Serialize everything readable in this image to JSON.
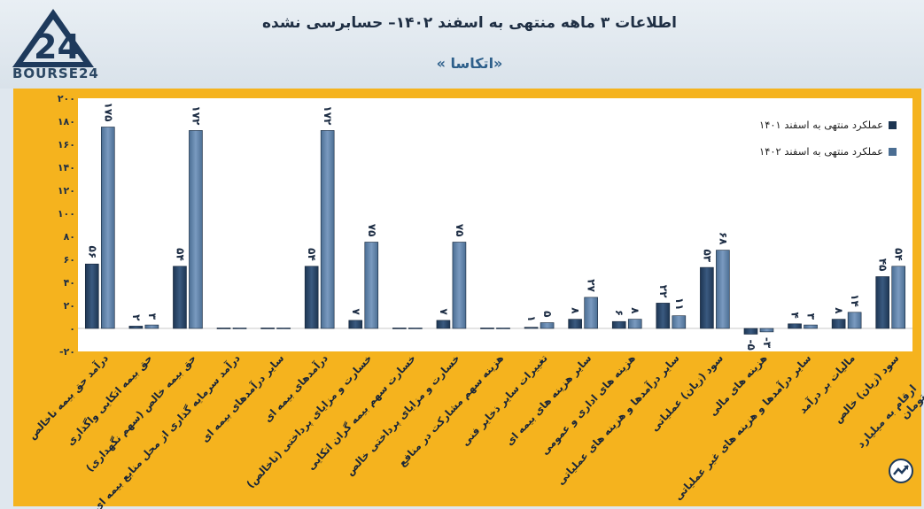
{
  "header": {
    "title": "اطلاعات ۳ ماهه منتهی به اسفند ۱۴۰۲– حسابرسی نشده",
    "subtitle": "«اتکاسا »",
    "logo_text": "BOURSE24"
  },
  "footer": {
    "note": "ارقام به میلیارد تومان"
  },
  "colors": {
    "panel": "#f5b31e",
    "series_1401": "#1d3552",
    "series_1402": "#4b6e93"
  },
  "chart_data": {
    "type": "bar",
    "ylim": [
      -20,
      200
    ],
    "yticks": [
      "-۲۰",
      "۰",
      "۲۰",
      "۴۰",
      "۶۰",
      "۸۰",
      "۱۰۰",
      "۱۲۰",
      "۱۴۰",
      "۱۶۰",
      "۱۸۰",
      "۲۰۰"
    ],
    "ytick_values": [
      -20,
      0,
      20,
      40,
      60,
      80,
      100,
      120,
      140,
      160,
      180,
      200
    ],
    "legend": [
      "عملکرد منتهی به اسفند ۱۴۰۱",
      "عملکرد منتهی به اسفند ۱۴۰۲"
    ],
    "categories": [
      "درآمد حق بیمه ناخالص",
      "حق بیمه اتکایی واگذاری",
      "حق بیمه خالص (سهم نگهداری)",
      "درآمد سرمایه گذاری از محل منابع بیمه ای",
      "سایر درآمدهای بیمه ای",
      "درآمدهای بیمه ای",
      "خسارت و مزایای پرداختی (ناخالص)",
      "خسارت سهم بیمه گران اتکایی",
      "خسارت و مزایای پرداختی خالص",
      "هزینه سهم مشارکت در منافع",
      "تغییرات سایر ذخایر فنی",
      "سایر هزینه های بیمه ای",
      "هزینه های اداری و عمومی",
      "سایر درآمدها و هزینه های عملیاتی",
      "سود (زیان) عملیاتی",
      "هزینه های مالی",
      "سایر درآمدها و هزینه های غیر عملیاتی",
      "مالیات بر درآمد",
      "سود (زیان) خالص"
    ],
    "series": [
      {
        "name": "عملکرد منتهی به اسفند ۱۴۰۱",
        "values": [
          56,
          2,
          54,
          0,
          0,
          54,
          7,
          0,
          7,
          0,
          1,
          8,
          6,
          22,
          53,
          -5,
          4,
          8,
          45
        ],
        "labels": [
          "۵۶",
          "۲",
          "۵۴",
          "",
          "",
          "۵۴",
          "۷",
          "",
          "۷",
          "",
          "۱",
          "۸",
          "۶",
          "۲۲",
          "۵۳",
          "-۵",
          "۴",
          "۸",
          "۴۵"
        ]
      },
      {
        "name": "عملکرد منتهی به اسفند ۱۴۰۲",
        "values": [
          175,
          3,
          172,
          0,
          0,
          172,
          75,
          0,
          75,
          0,
          5,
          27,
          8,
          11,
          68,
          -3,
          3,
          14,
          54
        ],
        "labels": [
          "۱۷۵",
          "۳",
          "۱۷۲",
          "",
          "",
          "۱۷۲",
          "۷۵",
          "",
          "۷۵",
          "",
          "۵",
          "۲۷",
          "۸",
          "۱۱",
          "۶۸",
          "-۳",
          "۳",
          "۱۴",
          "۵۴"
        ]
      }
    ]
  }
}
